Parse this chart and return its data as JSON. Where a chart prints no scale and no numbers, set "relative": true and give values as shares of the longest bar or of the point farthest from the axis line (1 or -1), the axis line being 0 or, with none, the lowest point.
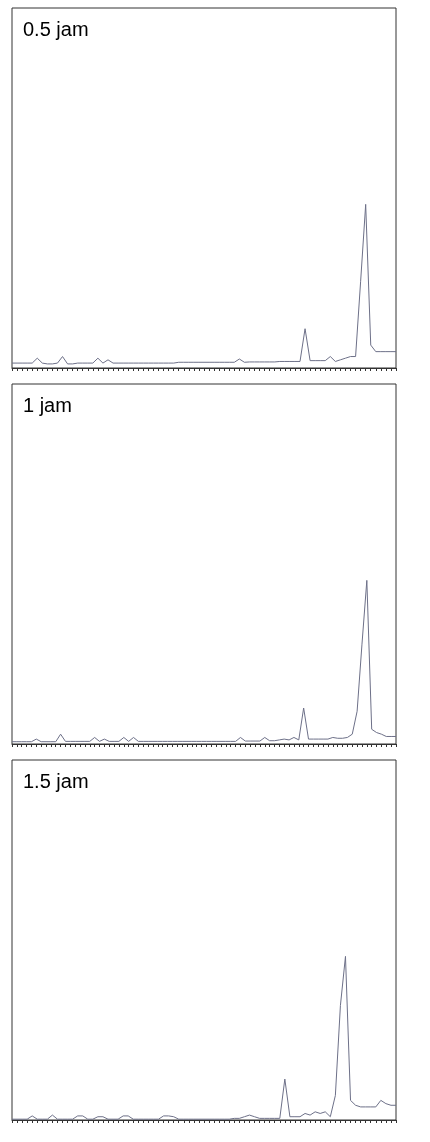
{
  "chart_data": [
    {
      "type": "line",
      "title": "0.5 jam",
      "relative": true,
      "color": "#6d7088",
      "categories": [
        null,
        null,
        null,
        null,
        null,
        null,
        null,
        null,
        null,
        null,
        null,
        null,
        null,
        null,
        null,
        null,
        null,
        null,
        null,
        null,
        null,
        null,
        null,
        null,
        null,
        null,
        null,
        null,
        null,
        null,
        null,
        null,
        null,
        null,
        null,
        null,
        null,
        null,
        null,
        null,
        null,
        null,
        null,
        null,
        null,
        null,
        null,
        null,
        null,
        null,
        null,
        null,
        null,
        null,
        null,
        null,
        null,
        null,
        null,
        null,
        null,
        null,
        null,
        null,
        null,
        null,
        null,
        null,
        null,
        null,
        null,
        null,
        null,
        null,
        null,
        null,
        null
      ],
      "values": [
        0.03,
        0.03,
        0.03,
        0.03,
        0.03,
        0.06,
        0.03,
        0.025,
        0.025,
        0.03,
        0.07,
        0.025,
        0.025,
        0.03,
        0.03,
        0.03,
        0.03,
        0.06,
        0.03,
        0.05,
        0.03,
        0.03,
        0.03,
        0.03,
        0.03,
        0.03,
        0.03,
        0.03,
        0.03,
        0.03,
        0.03,
        0.03,
        0.03,
        0.035,
        0.035,
        0.035,
        0.035,
        0.035,
        0.035,
        0.035,
        0.035,
        0.035,
        0.035,
        0.035,
        0.035,
        0.055,
        0.035,
        0.037,
        0.037,
        0.037,
        0.037,
        0.037,
        0.037,
        0.04,
        0.04,
        0.04,
        0.04,
        0.04,
        0.24,
        0.045,
        0.045,
        0.045,
        0.045,
        0.07,
        0.04,
        0.05,
        0.06,
        0.07,
        0.07,
        0.53,
        1,
        0.14,
        0.1,
        0.1,
        0.1,
        0.1,
        0.1
      ]
    },
    {
      "type": "line",
      "title": "1 jam",
      "relative": true,
      "color": "#6d7088",
      "categories": [
        null,
        null,
        null,
        null,
        null,
        null,
        null,
        null,
        null,
        null,
        null,
        null,
        null,
        null,
        null,
        null,
        null,
        null,
        null,
        null,
        null,
        null,
        null,
        null,
        null,
        null,
        null,
        null,
        null,
        null,
        null,
        null,
        null,
        null,
        null,
        null,
        null,
        null,
        null,
        null,
        null,
        null,
        null,
        null,
        null,
        null,
        null,
        null,
        null,
        null,
        null,
        null,
        null,
        null,
        null,
        null,
        null,
        null,
        null,
        null,
        null,
        null,
        null,
        null,
        null,
        null,
        null,
        null,
        null,
        null,
        null,
        null,
        null,
        null,
        null,
        null,
        null,
        null,
        null,
        null
      ],
      "values": [
        0.014,
        0.014,
        0.014,
        0.014,
        0.014,
        0.03,
        0.014,
        0.014,
        0.014,
        0.014,
        0.06,
        0.016,
        0.016,
        0.016,
        0.016,
        0.016,
        0.016,
        0.04,
        0.016,
        0.03,
        0.016,
        0.016,
        0.016,
        0.04,
        0.016,
        0.04,
        0.016,
        0.016,
        0.016,
        0.016,
        0.016,
        0.016,
        0.016,
        0.016,
        0.016,
        0.016,
        0.016,
        0.016,
        0.016,
        0.016,
        0.016,
        0.016,
        0.016,
        0.016,
        0.016,
        0.016,
        0.016,
        0.04,
        0.018,
        0.018,
        0.018,
        0.018,
        0.04,
        0.02,
        0.02,
        0.025,
        0.03,
        0.025,
        0.04,
        0.025,
        0.22,
        0.03,
        0.03,
        0.03,
        0.03,
        0.03,
        0.04,
        0.035,
        0.035,
        0.04,
        0.06,
        0.2,
        0.61,
        1,
        0.09,
        0.07,
        0.06,
        0.046,
        0.046,
        0.046
      ]
    },
    {
      "type": "line",
      "title": "1.5 jam",
      "relative": true,
      "color": "#6d7088",
      "categories": [
        null,
        null,
        null,
        null,
        null,
        null,
        null,
        null,
        null,
        null,
        null,
        null,
        null,
        null,
        null,
        null,
        null,
        null,
        null,
        null,
        null,
        null,
        null,
        null,
        null,
        null,
        null,
        null,
        null,
        null,
        null,
        null,
        null,
        null,
        null,
        null,
        null,
        null,
        null,
        null,
        null,
        null,
        null,
        null,
        null,
        null,
        null,
        null,
        null,
        null,
        null,
        null,
        null,
        null,
        null,
        null,
        null,
        null,
        null,
        null,
        null,
        null,
        null,
        null,
        null,
        null,
        null,
        null,
        null,
        null,
        null,
        null,
        null,
        null,
        null,
        null,
        null
      ],
      "values": [
        0.005,
        0.005,
        0.005,
        0.005,
        0.025,
        0.005,
        0.005,
        0.005,
        0.03,
        0.005,
        0.005,
        0.005,
        0.005,
        0.025,
        0.025,
        0.005,
        0.005,
        0.02,
        0.02,
        0.005,
        0.005,
        0.005,
        0.025,
        0.025,
        0.005,
        0.005,
        0.005,
        0.005,
        0.005,
        0.005,
        0.025,
        0.025,
        0.02,
        0.005,
        0.005,
        0.005,
        0.005,
        0.005,
        0.005,
        0.005,
        0.005,
        0.005,
        0.005,
        0.005,
        0.01,
        0.01,
        0.02,
        0.03,
        0.02,
        0.01,
        0.01,
        0.01,
        0.01,
        0.01,
        0.25,
        0.02,
        0.02,
        0.02,
        0.04,
        0.03,
        0.05,
        0.04,
        0.05,
        0.02,
        0.15,
        0.7,
        1,
        0.12,
        0.09,
        0.08,
        0.08,
        0.08,
        0.08,
        0.12,
        0.1,
        0.09,
        0.09
      ]
    }
  ]
}
